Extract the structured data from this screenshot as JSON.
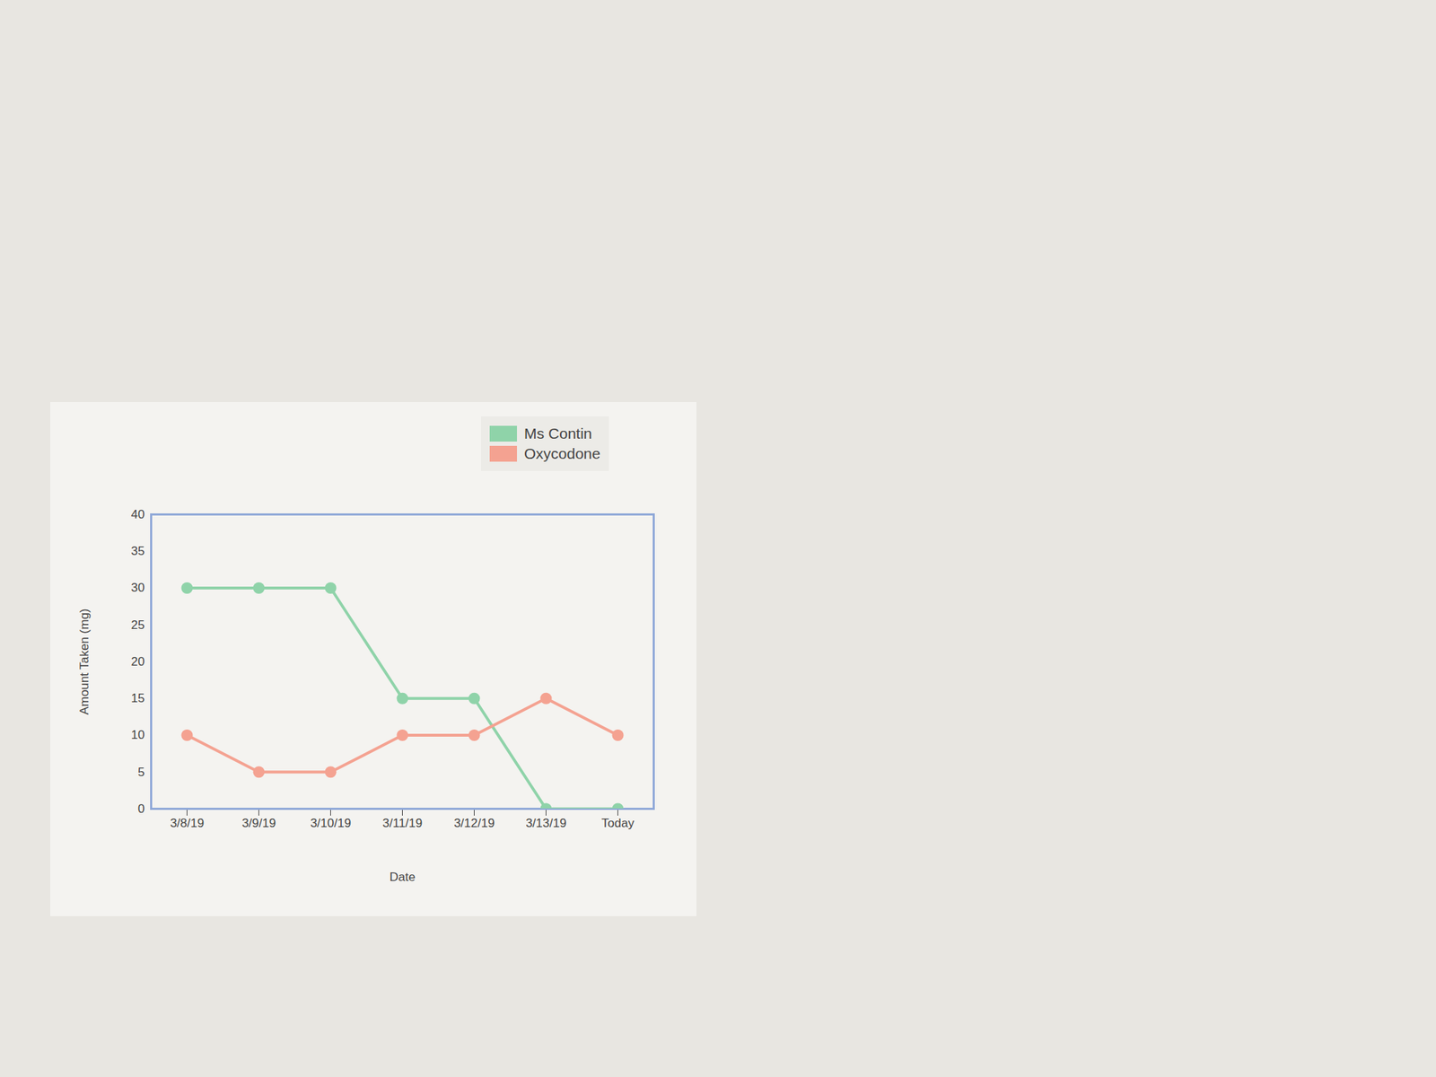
{
  "chart_data": {
    "type": "line",
    "x_label": "Date",
    "y_label": "Amount Taken (mg)",
    "categories": [
      "3/8/19",
      "3/9/19",
      "3/10/19",
      "3/11/19",
      "3/12/19",
      "3/13/19",
      "Today"
    ],
    "series": [
      {
        "name": "Ms Contin",
        "color": "#8fd3a9",
        "values": [
          30,
          30,
          30,
          15,
          15,
          0,
          0
        ]
      },
      {
        "name": "Oxycodone",
        "color": "#f4a291",
        "values": [
          10,
          5,
          5,
          10,
          10,
          15,
          10
        ]
      }
    ],
    "ylim": [
      0,
      40
    ],
    "yticks": [
      0,
      5,
      10,
      15,
      20,
      25,
      30,
      35,
      40
    ],
    "marker": "circle",
    "legend": "top",
    "grid": false
  }
}
